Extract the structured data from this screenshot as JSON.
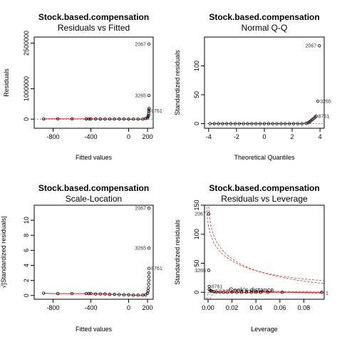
{
  "chart_data": [
    {
      "type": "scatter",
      "title": "Stock.based.compensation",
      "subtitle": "Residuals vs Fitted",
      "xlabel": "Fitted values",
      "ylabel": "Residuals",
      "xticks": [
        -800,
        -400,
        0,
        200
      ],
      "yticks": [
        0,
        1000000,
        2500000
      ],
      "ytick_labels": [
        "0",
        "1000000",
        "2500000"
      ],
      "xlim": [
        -1000,
        260
      ],
      "ylim": [
        -300000,
        2700000
      ],
      "reference_line": 0,
      "points": [
        {
          "x": -900,
          "y": 10000
        },
        {
          "x": -750,
          "y": 9000
        },
        {
          "x": -600,
          "y": 8000
        },
        {
          "x": -450,
          "y": 7000
        },
        {
          "x": -420,
          "y": 6000
        },
        {
          "x": -400,
          "y": 5000
        },
        {
          "x": -350,
          "y": 5000
        },
        {
          "x": -300,
          "y": 4000
        },
        {
          "x": -250,
          "y": 4000
        },
        {
          "x": -200,
          "y": 3000
        },
        {
          "x": -150,
          "y": 3000
        },
        {
          "x": -100,
          "y": 2000
        },
        {
          "x": -50,
          "y": 2000
        },
        {
          "x": 0,
          "y": 1000
        },
        {
          "x": 50,
          "y": 0
        },
        {
          "x": 100,
          "y": 0
        },
        {
          "x": 150,
          "y": 0
        },
        {
          "x": 180,
          "y": 20000
        },
        {
          "x": 200,
          "y": 40000
        },
        {
          "x": 205,
          "y": 80000
        },
        {
          "x": 210,
          "y": 120000
        },
        {
          "x": 212,
          "y": 180000
        },
        {
          "x": 214,
          "y": 250000
        },
        {
          "x": 215,
          "y": 300000
        },
        {
          "x": 216,
          "y": 350000
        },
        {
          "x": 215,
          "y": 780000
        },
        {
          "x": 215,
          "y": 2470000
        }
      ],
      "labels": [
        {
          "text": "2067",
          "x": 215,
          "y": 2470000
        },
        {
          "text": "3265",
          "x": 215,
          "y": 780000
        },
        {
          "text": "8761",
          "x": 216,
          "y": 270000
        }
      ]
    },
    {
      "type": "scatter",
      "title": "Stock.based.compensation",
      "subtitle": "Normal Q-Q",
      "xlabel": "Theoretical Quantiles",
      "ylabel": "Standardized residuals",
      "xticks": [
        -4,
        -2,
        0,
        2,
        4
      ],
      "yticks": [
        0,
        50,
        100
      ],
      "xlim": [
        -4.3,
        4.3
      ],
      "ylim": [
        -8,
        150
      ],
      "reference_line": 0,
      "points": [
        {
          "x": -3.9,
          "y": 0
        },
        {
          "x": -3.6,
          "y": 0
        },
        {
          "x": -3.3,
          "y": 0
        },
        {
          "x": -3,
          "y": 0
        },
        {
          "x": -2.7,
          "y": 0
        },
        {
          "x": -2.4,
          "y": 0
        },
        {
          "x": -2.1,
          "y": 0
        },
        {
          "x": -1.8,
          "y": 0
        },
        {
          "x": -1.5,
          "y": 0
        },
        {
          "x": -1.2,
          "y": 0
        },
        {
          "x": -0.9,
          "y": 0
        },
        {
          "x": -0.6,
          "y": 0
        },
        {
          "x": -0.3,
          "y": 0
        },
        {
          "x": 0,
          "y": 0
        },
        {
          "x": 0.3,
          "y": 0
        },
        {
          "x": 0.6,
          "y": 0
        },
        {
          "x": 0.9,
          "y": 0
        },
        {
          "x": 1.2,
          "y": 0
        },
        {
          "x": 1.5,
          "y": 0
        },
        {
          "x": 1.8,
          "y": 0
        },
        {
          "x": 2.1,
          "y": 0
        },
        {
          "x": 2.4,
          "y": 0
        },
        {
          "x": 2.7,
          "y": 0
        },
        {
          "x": 3.0,
          "y": 0.5
        },
        {
          "x": 3.15,
          "y": 1.5
        },
        {
          "x": 3.25,
          "y": 3
        },
        {
          "x": 3.35,
          "y": 5
        },
        {
          "x": 3.45,
          "y": 7
        },
        {
          "x": 3.55,
          "y": 9
        },
        {
          "x": 3.65,
          "y": 11
        },
        {
          "x": 3.72,
          "y": 13
        },
        {
          "x": 3.85,
          "y": 39
        },
        {
          "x": 3.95,
          "y": 135
        }
      ],
      "labels": [
        {
          "text": "2067",
          "x": 3.95,
          "y": 135
        },
        {
          "text": "3265",
          "x": 3.85,
          "y": 39
        },
        {
          "text": "8761",
          "x": 3.72,
          "y": 13
        }
      ]
    },
    {
      "type": "scatter",
      "title": "Stock.based.compensation",
      "subtitle": "Scale-Location",
      "xlabel": "Fitted values",
      "ylabel": "√|Standardized residuals|",
      "xticks": [
        -800,
        -400,
        0,
        200
      ],
      "yticks": [
        0,
        2,
        4,
        6,
        8,
        10
      ],
      "xlim": [
        -1000,
        260
      ],
      "ylim": [
        -0.5,
        12
      ],
      "points": [
        {
          "x": -900,
          "y": 0.3
        },
        {
          "x": -750,
          "y": 0.25
        },
        {
          "x": -600,
          "y": 0.25
        },
        {
          "x": -450,
          "y": 0.25
        },
        {
          "x": -420,
          "y": 0.25
        },
        {
          "x": -400,
          "y": 0.25
        },
        {
          "x": -350,
          "y": 0.2
        },
        {
          "x": -300,
          "y": 0.2
        },
        {
          "x": -250,
          "y": 0.2
        },
        {
          "x": -200,
          "y": 0.15
        },
        {
          "x": -150,
          "y": 0.15
        },
        {
          "x": -100,
          "y": 0.12
        },
        {
          "x": -50,
          "y": 0.1
        },
        {
          "x": 0,
          "y": 0.1
        },
        {
          "x": 50,
          "y": 0.05
        },
        {
          "x": 100,
          "y": 0.05
        },
        {
          "x": 150,
          "y": 0.05
        },
        {
          "x": 180,
          "y": 0.1
        },
        {
          "x": 200,
          "y": 0.3
        },
        {
          "x": 205,
          "y": 0.6
        },
        {
          "x": 210,
          "y": 1.0
        },
        {
          "x": 212,
          "y": 1.5
        },
        {
          "x": 213,
          "y": 2.0
        },
        {
          "x": 214,
          "y": 2.5
        },
        {
          "x": 215,
          "y": 3.0
        },
        {
          "x": 216,
          "y": 3.6
        },
        {
          "x": 215,
          "y": 6.3
        },
        {
          "x": 215,
          "y": 11.6
        }
      ],
      "labels": [
        {
          "text": "2067",
          "x": 215,
          "y": 11.6
        },
        {
          "text": "3265",
          "x": 215,
          "y": 6.3
        },
        {
          "text": "8761",
          "x": 216,
          "y": 3.6
        }
      ]
    },
    {
      "type": "scatter",
      "title": "Stock.based.compensation",
      "subtitle": "Residuals vs Leverage",
      "xlabel": "Leverage",
      "ylabel": "Standardized residuals",
      "xticks": [
        0.0,
        0.02,
        0.04,
        0.06,
        0.08
      ],
      "xtick_labels": [
        "0.00",
        "0.02",
        "0.04",
        "0.06",
        "0.08"
      ],
      "yticks": [
        0,
        50,
        100,
        150
      ],
      "xlim": [
        -0.003,
        0.097
      ],
      "ylim": [
        -12,
        150
      ],
      "reference_line": 0,
      "contour_label": "Cook's distance",
      "contour_value_label": "1",
      "points": [
        {
          "x": 0.0005,
          "y": 135
        },
        {
          "x": 0.0005,
          "y": 38
        },
        {
          "x": 0.001,
          "y": 10
        },
        {
          "x": 0.001,
          "y": 5
        },
        {
          "x": 0.002,
          "y": 3
        },
        {
          "x": 0.003,
          "y": 2
        },
        {
          "x": 0.005,
          "y": 1
        },
        {
          "x": 0.007,
          "y": 0.5
        },
        {
          "x": 0.01,
          "y": 0.2
        },
        {
          "x": 0.013,
          "y": 0
        },
        {
          "x": 0.016,
          "y": 0
        },
        {
          "x": 0.02,
          "y": 0
        },
        {
          "x": 0.024,
          "y": 0
        },
        {
          "x": 0.028,
          "y": 0
        },
        {
          "x": 0.032,
          "y": 0
        },
        {
          "x": 0.036,
          "y": 0
        },
        {
          "x": 0.04,
          "y": 0
        },
        {
          "x": 0.044,
          "y": 0
        },
        {
          "x": 0.05,
          "y": 0
        },
        {
          "x": 0.062,
          "y": 0
        },
        {
          "x": 0.095,
          "y": 0
        }
      ],
      "labels": [
        {
          "text": "2067",
          "x": 0.0005,
          "y": 135
        },
        {
          "text": "3265",
          "x": 0.0005,
          "y": 38
        },
        {
          "text": "8761",
          "x": 0.001,
          "y": 10
        }
      ]
    }
  ]
}
